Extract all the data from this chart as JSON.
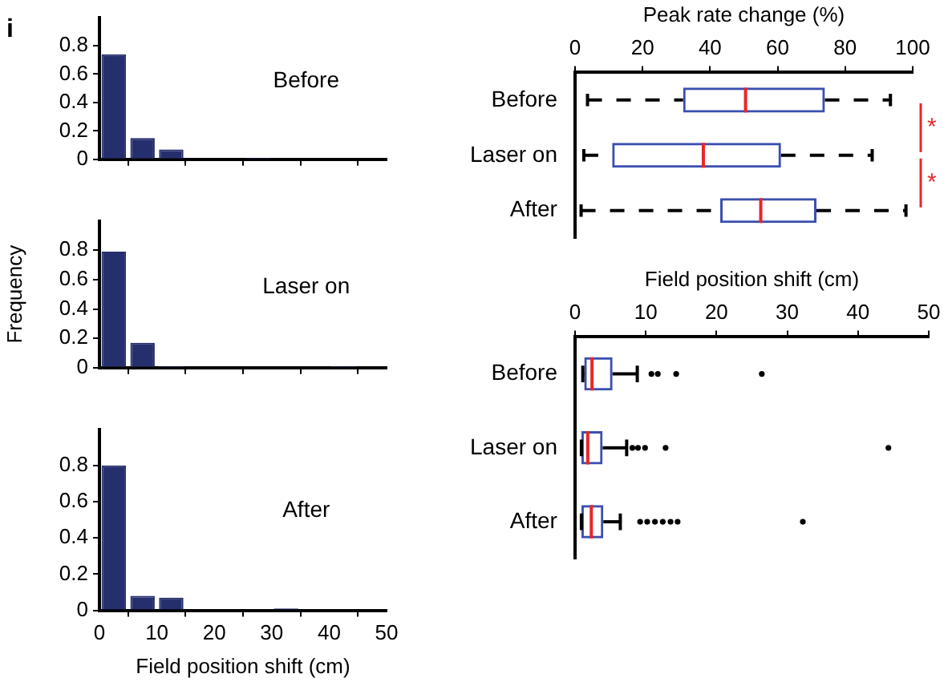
{
  "chart_data": [
    {
      "type": "histogram",
      "bins": [
        0,
        5,
        10,
        15,
        20,
        25,
        30,
        35,
        40,
        45,
        50
      ],
      "values": [
        0.74,
        0.15,
        0.07,
        0,
        0,
        0.01,
        0,
        0,
        0,
        0
      ],
      "color": "#262f6e",
      "xlim": [
        0,
        50
      ],
      "xticks": [
        0,
        10,
        20,
        30,
        40,
        50
      ],
      "ylim": [
        0,
        1
      ],
      "yticks": [
        0,
        0.2,
        0.4,
        0.6,
        0.8
      ],
      "tick_labels": "y",
      "annotations": [
        "i",
        "Before"
      ]
    },
    {
      "type": "histogram",
      "bins": [
        0,
        5,
        10,
        15,
        20,
        25,
        30,
        35,
        40,
        45,
        50
      ],
      "values": [
        0.79,
        0.17,
        0.01,
        0,
        0,
        0,
        0,
        0,
        0.01,
        0
      ],
      "color": "#262f6e",
      "xlim": [
        0,
        50
      ],
      "xticks": [
        0,
        10,
        20,
        30,
        40,
        50
      ],
      "ylim": [
        0,
        1
      ],
      "yticks": [
        0,
        0.2,
        0.4,
        0.6,
        0.8
      ],
      "tick_labels": "y",
      "ylabel": "Frequency",
      "annotations": [
        "Laser on"
      ]
    },
    {
      "type": "histogram",
      "bins": [
        0,
        5,
        10,
        15,
        20,
        25,
        30,
        35,
        40,
        45,
        50
      ],
      "values": [
        0.8,
        0.08,
        0.07,
        0,
        0,
        0,
        0.01,
        0,
        0,
        0
      ],
      "color": "#262f6e",
      "xlim": [
        0,
        50
      ],
      "xticks": [
        0,
        10,
        20,
        30,
        40,
        50
      ],
      "ylim": [
        0,
        1
      ],
      "yticks": [
        0,
        0.2,
        0.4,
        0.6,
        0.8
      ],
      "xlabel": "Field position shift (cm)",
      "annotations": [
        "After"
      ]
    },
    {
      "type": "box",
      "orientation": "horizontal",
      "xlabel": "Peak rate change (%)",
      "categories": [
        "Before",
        "Laser on",
        "After"
      ],
      "color": "#3b4fb0",
      "line_style": "dashed",
      "xlim": [
        0,
        100
      ],
      "xticks": [
        0,
        20,
        40,
        60,
        80,
        100
      ],
      "boxes": [
        {
          "low": 3.7,
          "q1": 32,
          "median": 50.5,
          "q3": 74,
          "high": 93.4
        },
        {
          "low": 2.6,
          "q1": 11,
          "median": 38,
          "q3": 61,
          "high": 88
        },
        {
          "low": 1.8,
          "q1": 43,
          "median": 55,
          "q3": 71.5,
          "high": 98
        }
      ],
      "annotations": [
        "*",
        "*"
      ]
    },
    {
      "type": "box",
      "orientation": "horizontal",
      "xlabel": "Field position shift (cm)",
      "categories": [
        "Before",
        "Laser on",
        "After"
      ],
      "color": "#3b4fb0",
      "line_style": "solid",
      "xlim": [
        0,
        50
      ],
      "xticks": [
        0,
        10,
        20,
        30,
        40,
        50
      ],
      "boxes": [
        {
          "low": 1.1,
          "q1": 1.3,
          "median": 2.4,
          "q3": 5.3,
          "high": 8.8,
          "outliers": [
            10.8,
            11.7,
            14.3,
            26.4
          ]
        },
        {
          "low": 0.9,
          "q1": 0.9,
          "median": 1.8,
          "q3": 3.9,
          "high": 7.3,
          "outliers": [
            8.1,
            8.9,
            9.9,
            12.8,
            44.3
          ]
        },
        {
          "low": 0.9,
          "q1": 0.9,
          "median": 2.3,
          "q3": 4.0,
          "high": 6.4,
          "outliers": [
            9.2,
            10.2,
            11.3,
            12.4,
            13.5,
            14.5,
            32.2
          ]
        }
      ]
    }
  ]
}
